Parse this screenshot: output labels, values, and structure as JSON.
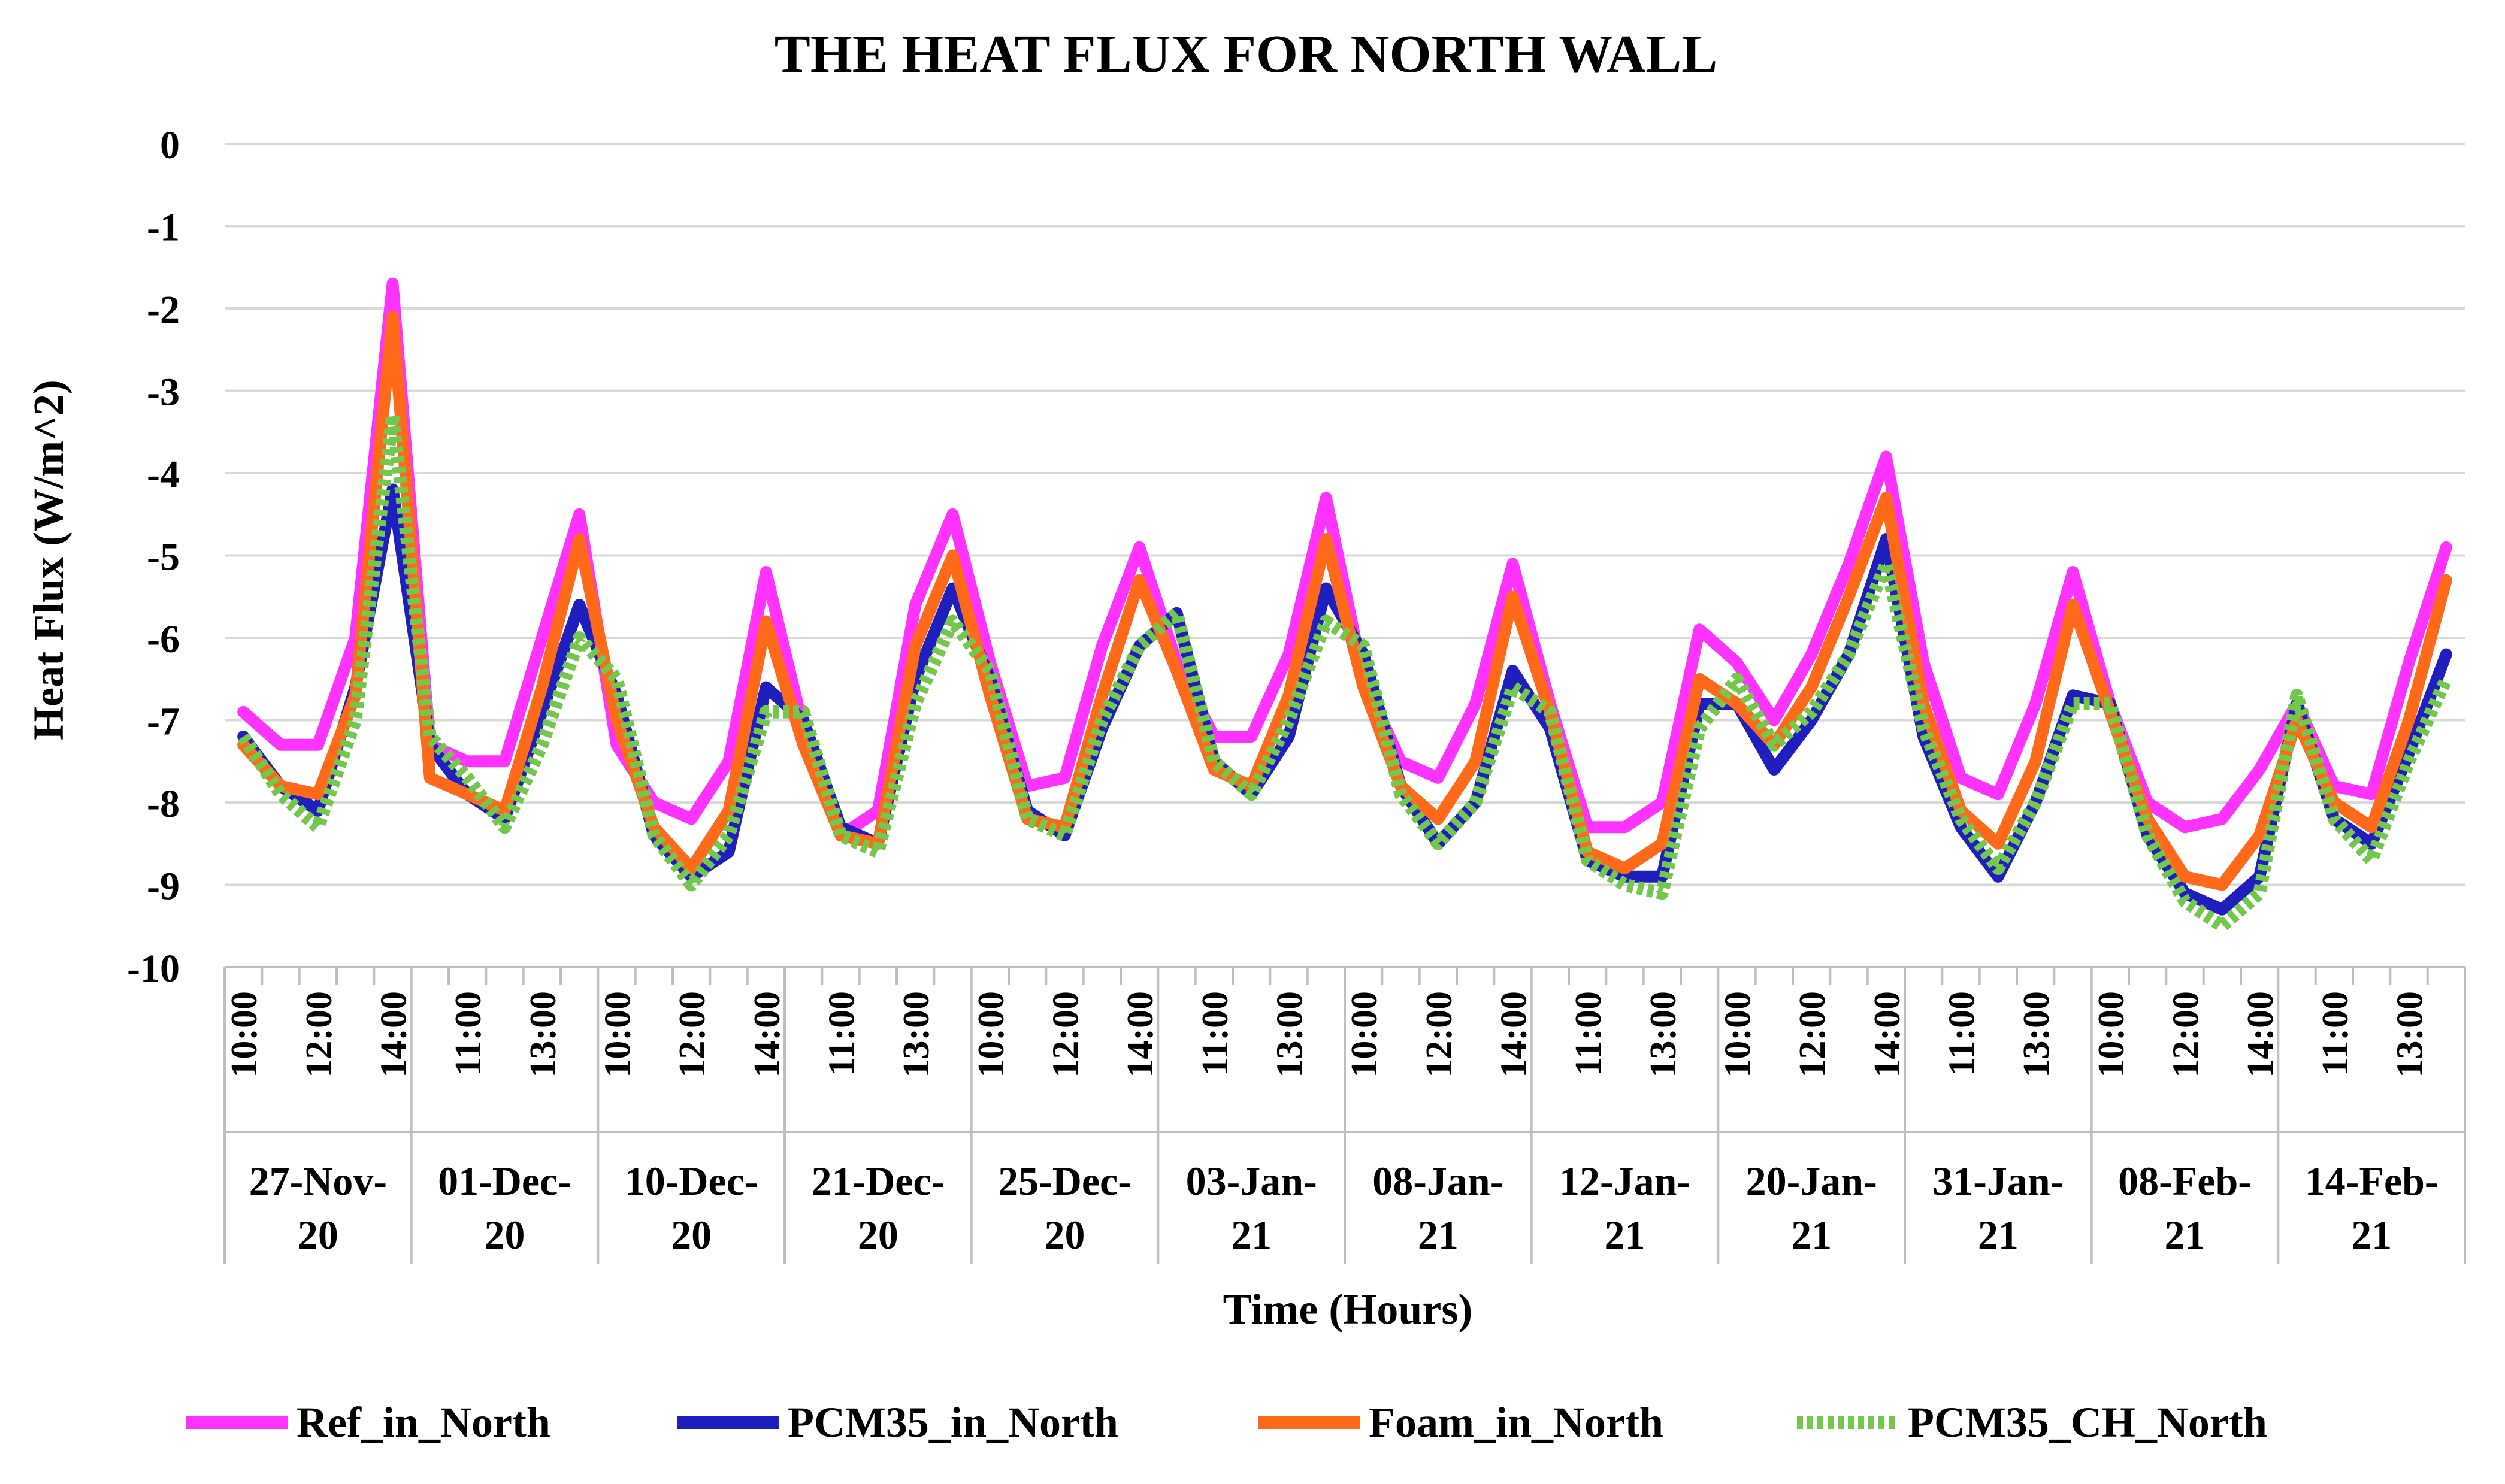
{
  "chart_data": {
    "type": "line",
    "title": "THE HEAT FLUX FOR NORTH WALL",
    "xlabel": "Time (Hours)",
    "ylabel": "Heat Flux (W/m^2)",
    "ylim": [
      -10,
      0
    ],
    "yticks": [
      0,
      -1,
      -2,
      -3,
      -4,
      -5,
      -6,
      -7,
      -8,
      -9,
      -10
    ],
    "grid": true,
    "legend_position": "bottom",
    "points_per_day": 5,
    "hour_tick_labels": [
      "10:00",
      "12:00",
      "14:00",
      "11:00",
      "13:00",
      "10:00",
      "12:00",
      "14:00",
      "11:00",
      "13:00",
      "10:00",
      "12:00",
      "14:00",
      "11:00",
      "13:00",
      "10:00",
      "12:00",
      "14:00",
      "11:00",
      "13:00",
      "10:00",
      "12:00",
      "14:00",
      "11:00",
      "13:00",
      "10:00",
      "12:00",
      "14:00",
      "11:00",
      "13:00"
    ],
    "day_groups": [
      {
        "line1": "27-Nov-",
        "line2": "20"
      },
      {
        "line1": "01-Dec-",
        "line2": "20"
      },
      {
        "line1": "10-Dec-",
        "line2": "20"
      },
      {
        "line1": "21-Dec-",
        "line2": "20"
      },
      {
        "line1": "25-Dec-",
        "line2": "20"
      },
      {
        "line1": "03-Jan-",
        "line2": "21"
      },
      {
        "line1": "08-Jan-",
        "line2": "21"
      },
      {
        "line1": "12-Jan-",
        "line2": "21"
      },
      {
        "line1": "20-Jan-",
        "line2": "21"
      },
      {
        "line1": "31-Jan-",
        "line2": "21"
      },
      {
        "line1": "08-Feb-",
        "line2": "21"
      },
      {
        "line1": "14-Feb-",
        "line2": "21"
      }
    ],
    "series": [
      {
        "name": "Ref_in_North",
        "color": "#ff33ff",
        "style": "solid",
        "values": [
          -6.9,
          -7.3,
          -7.3,
          -6.0,
          -1.7,
          -7.3,
          -7.5,
          -7.5,
          -6.0,
          -4.5,
          -7.3,
          -8.0,
          -8.2,
          -7.5,
          -5.2,
          -7.1,
          -8.4,
          -8.1,
          -5.6,
          -4.5,
          -6.3,
          -7.8,
          -7.7,
          -6.1,
          -4.9,
          -6.3,
          -7.2,
          -7.2,
          -6.2,
          -4.3,
          -6.5,
          -7.5,
          -7.7,
          -6.8,
          -5.1,
          -6.8,
          -8.3,
          -8.3,
          -8.0,
          -5.9,
          -6.3,
          -7.0,
          -6.2,
          -5.1,
          -3.8,
          -6.3,
          -7.7,
          -7.9,
          -6.8,
          -5.2,
          -6.8,
          -8.0,
          -8.3,
          -8.2,
          -7.6,
          -6.8,
          -7.8,
          -7.9,
          -6.3,
          -4.9
        ]
      },
      {
        "name": "PCM35_in_North",
        "color": "#1f1fc0",
        "style": "solid",
        "values": [
          -7.2,
          -7.8,
          -8.1,
          -6.6,
          -4.2,
          -7.3,
          -7.9,
          -8.2,
          -6.9,
          -5.6,
          -6.7,
          -8.4,
          -8.9,
          -8.6,
          -6.6,
          -7.0,
          -8.3,
          -8.5,
          -6.5,
          -5.4,
          -6.5,
          -8.1,
          -8.4,
          -7.1,
          -6.1,
          -5.7,
          -7.5,
          -7.9,
          -7.2,
          -5.4,
          -6.2,
          -7.8,
          -8.5,
          -8.0,
          -6.4,
          -7.1,
          -8.7,
          -8.9,
          -8.9,
          -6.8,
          -6.8,
          -7.6,
          -7.0,
          -6.2,
          -4.8,
          -7.2,
          -8.3,
          -8.9,
          -8.0,
          -6.7,
          -6.8,
          -8.4,
          -9.1,
          -9.3,
          -8.9,
          -6.8,
          -8.2,
          -8.5,
          -7.4,
          -6.2
        ]
      },
      {
        "name": "Foam_in_North",
        "color": "#ff6a1a",
        "style": "solid",
        "values": [
          -7.3,
          -7.8,
          -7.9,
          -6.7,
          -2.1,
          -7.7,
          -7.9,
          -8.1,
          -6.6,
          -4.8,
          -7.0,
          -8.3,
          -8.8,
          -8.1,
          -5.8,
          -7.3,
          -8.4,
          -8.5,
          -6.1,
          -5.0,
          -6.7,
          -8.2,
          -8.3,
          -6.7,
          -5.3,
          -6.4,
          -7.6,
          -7.8,
          -6.7,
          -4.8,
          -6.6,
          -7.8,
          -8.2,
          -7.5,
          -5.5,
          -6.9,
          -8.6,
          -8.8,
          -8.5,
          -6.5,
          -6.8,
          -7.3,
          -6.6,
          -5.5,
          -4.3,
          -6.8,
          -8.1,
          -8.5,
          -7.5,
          -5.6,
          -6.9,
          -8.2,
          -8.9,
          -9.0,
          -8.4,
          -7.0,
          -8.0,
          -8.3,
          -7.0,
          -5.3
        ]
      },
      {
        "name": "PCM35_CH_North",
        "color": "#72c84a",
        "style": "dashed",
        "values": [
          -7.2,
          -7.9,
          -8.3,
          -7.0,
          -3.3,
          -7.2,
          -7.7,
          -8.3,
          -7.3,
          -6.0,
          -6.5,
          -8.4,
          -9.0,
          -8.4,
          -6.9,
          -6.9,
          -8.4,
          -8.6,
          -6.8,
          -5.8,
          -6.4,
          -8.2,
          -8.4,
          -7.0,
          -6.1,
          -5.7,
          -7.5,
          -7.9,
          -7.0,
          -5.8,
          -6.1,
          -7.9,
          -8.5,
          -8.0,
          -6.6,
          -6.9,
          -8.7,
          -9.0,
          -9.1,
          -7.1,
          -6.5,
          -7.3,
          -6.9,
          -6.2,
          -5.1,
          -7.1,
          -8.2,
          -8.8,
          -8.0,
          -6.8,
          -6.8,
          -8.4,
          -9.2,
          -9.5,
          -9.1,
          -6.7,
          -8.2,
          -8.7,
          -7.5,
          -6.5
        ]
      }
    ]
  }
}
